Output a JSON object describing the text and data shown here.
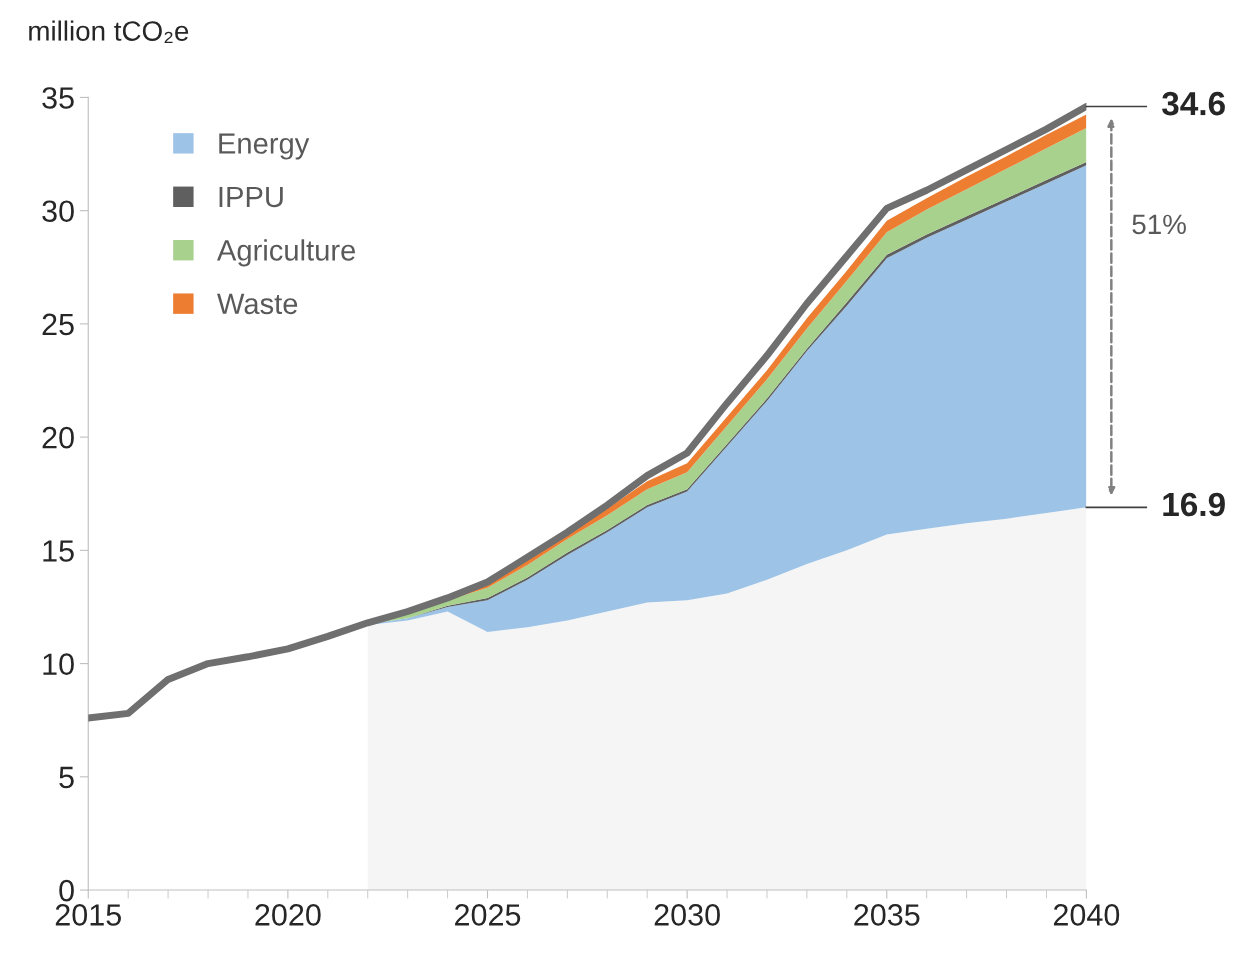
{
  "chart_data": {
    "type": "area",
    "stacked": true,
    "ylabel": "million tCO₂e",
    "xlim": [
      2015,
      2040
    ],
    "xticks": [
      2015,
      2020,
      2025,
      2030,
      2035,
      2040
    ],
    "ylim": [
      0,
      35
    ],
    "yticks": [
      0,
      5,
      10,
      15,
      20,
      25,
      30,
      35
    ],
    "grid": false,
    "legend": "top left",
    "series": [
      {
        "color": "#f5f5f5",
        "x": [
          2022,
          2023,
          2024,
          2025,
          2026,
          2027,
          2028,
          2029,
          2030,
          2031,
          2032,
          2033,
          2034,
          2035,
          2036,
          2037,
          2038,
          2039,
          2040
        ],
        "values": [
          11.7,
          11.9,
          12.3,
          11.4,
          11.6,
          11.9,
          12.3,
          12.7,
          12.8,
          13.1,
          13.7,
          14.4,
          15.0,
          15.7,
          15.95,
          16.2,
          16.4,
          16.65,
          16.9
        ]
      },
      {
        "name": "Energy",
        "color": "#9dc3e6",
        "x": [
          2022,
          2023,
          2024,
          2025,
          2026,
          2027,
          2028,
          2029,
          2030,
          2031,
          2032,
          2033,
          2034,
          2035,
          2036,
          2037,
          2038,
          2039,
          2040
        ],
        "values": [
          0.05,
          0.1,
          0.2,
          1.4,
          2.1,
          2.9,
          3.5,
          4.2,
          4.8,
          6.5,
          7.9,
          9.4,
          10.8,
          12.2,
          12.85,
          13.4,
          14.0,
          14.55,
          15.1
        ]
      },
      {
        "name": "IPPU",
        "color": "#5f5f5f",
        "x": [
          2022,
          2023,
          2024,
          2025,
          2026,
          2027,
          2028,
          2029,
          2030,
          2031,
          2032,
          2033,
          2034,
          2035,
          2036,
          2037,
          2038,
          2039,
          2040
        ],
        "values": [
          0.0,
          0.0,
          0.05,
          0.1,
          0.1,
          0.1,
          0.1,
          0.1,
          0.1,
          0.1,
          0.1,
          0.1,
          0.15,
          0.15,
          0.15,
          0.15,
          0.15,
          0.15,
          0.15
        ]
      },
      {
        "name": "Agriculture",
        "color": "#a9d18e",
        "x": [
          2022,
          2023,
          2024,
          2025,
          2026,
          2027,
          2028,
          2029,
          2030,
          2031,
          2032,
          2033,
          2034,
          2035,
          2036,
          2037,
          2038,
          2039,
          2040
        ],
        "values": [
          0.05,
          0.2,
          0.25,
          0.45,
          0.55,
          0.6,
          0.65,
          0.7,
          0.75,
          0.8,
          0.85,
          0.9,
          0.95,
          1.0,
          1.1,
          1.2,
          1.3,
          1.4,
          1.5
        ]
      },
      {
        "name": "Waste",
        "color": "#ed7d31",
        "x": [
          2022,
          2023,
          2024,
          2025,
          2026,
          2027,
          2028,
          2029,
          2030,
          2031,
          2032,
          2033,
          2034,
          2035,
          2036,
          2037,
          2038,
          2039,
          2040
        ],
        "values": [
          0.02,
          0.05,
          0.05,
          0.2,
          0.25,
          0.3,
          0.3,
          0.35,
          0.4,
          0.4,
          0.4,
          0.45,
          0.45,
          0.5,
          0.5,
          0.55,
          0.55,
          0.6,
          0.6
        ]
      },
      {
        "type": "line",
        "color": "#6f6f6f",
        "x": [
          2015,
          2016,
          2017,
          2018,
          2019,
          2020,
          2021,
          2022,
          2023,
          2024,
          2025,
          2026,
          2027,
          2028,
          2029,
          2030,
          2031,
          2032,
          2033,
          2034,
          2035,
          2036,
          2037,
          2038,
          2039,
          2040
        ],
        "values": [
          7.6,
          7.8,
          9.3,
          10.0,
          10.3,
          10.65,
          11.2,
          11.8,
          12.3,
          12.9,
          13.6,
          14.7,
          15.8,
          17.0,
          18.3,
          19.3,
          21.5,
          23.6,
          25.9,
          28.0,
          30.1,
          30.9,
          31.8,
          32.7,
          33.6,
          34.6
        ]
      }
    ],
    "annotations": [
      {
        "text": "34.6",
        "x": 2040,
        "y": 34.6
      },
      {
        "text": "16.9",
        "x": 2040,
        "y": 16.9
      },
      "51%"
    ]
  }
}
